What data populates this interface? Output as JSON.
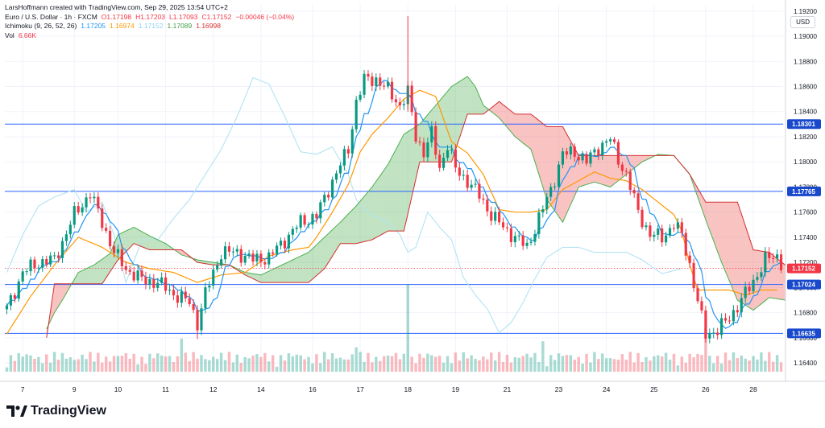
{
  "header": {
    "attribution": "LarsHoffmann created with TradingView.com, Sep 29, 2025 13:54 UTC+2",
    "symbol": "Euro / U.S. Dollar · 1h · FXCM",
    "ohlc": {
      "O": "1.17198",
      "H": "1.17203",
      "L": "1.17093",
      "C": "1.17152",
      "change": "−0.00046 (−0.04%)"
    },
    "ichimoku": {
      "label": "Ichimoku (9, 26, 52, 26)",
      "values": [
        "1.17205",
        "1.16974",
        "1.17152",
        "1.17089",
        "1.16998"
      ]
    },
    "vol": {
      "label": "Vol",
      "value": "6.66K"
    }
  },
  "colors": {
    "up": "#089981",
    "down": "#f23645",
    "tenkan": "#2196f3",
    "kijun": "#ff9800",
    "chikou": "#b2e3f4",
    "spanA": "#4caf50",
    "spanB": "#d32f2f",
    "cloudBull": "rgba(76,175,80,0.35)",
    "cloudBear": "rgba(239,83,80,0.35)",
    "hline": "#2962ff",
    "axisBadge": "#1848cc",
    "lastPrice": "#f23645"
  },
  "currency_label": "USD",
  "brand": {
    "name": "TradingView",
    "icon": "tradingview-logo-icon"
  },
  "chart_data": {
    "type": "candlestick",
    "title": "Euro / U.S. Dollar · 1h · FXCM",
    "y_ticks": [
      "1.16400",
      "1.16600",
      "1.16800",
      "1.17000",
      "1.17200",
      "1.17400",
      "1.17600",
      "1.17800",
      "1.18000",
      "1.18200",
      "1.18400",
      "1.18600",
      "1.18800",
      "1.19000",
      "1.19200"
    ],
    "ylim": [
      1.1633,
      1.1925
    ],
    "x_ticks": [
      "7",
      "9",
      "10",
      "11",
      "12",
      "14",
      "16",
      "17",
      "18",
      "19",
      "21",
      "23",
      "24",
      "25",
      "26",
      "28"
    ],
    "x_tick_index": [
      4,
      17,
      28,
      40,
      52,
      64,
      77,
      89,
      101,
      113,
      126,
      139,
      151,
      163,
      176,
      188
    ],
    "n_bars": 196,
    "horizontal_levels": [
      {
        "value": 1.18301,
        "label": "1.18301"
      },
      {
        "value": 1.17765,
        "label": "1.17765"
      },
      {
        "value": 1.17024,
        "label": "1.17024"
      },
      {
        "value": 1.16635,
        "label": "1.16635"
      }
    ],
    "last_price": {
      "value": 1.17152,
      "label": "1.17152"
    },
    "close_anchors": [
      [
        0,
        1.1683
      ],
      [
        4,
        1.1712
      ],
      [
        8,
        1.172
      ],
      [
        12,
        1.1722
      ],
      [
        17,
        1.1758
      ],
      [
        21,
        1.1775
      ],
      [
        24,
        1.1752
      ],
      [
        27,
        1.1728
      ],
      [
        30,
        1.1715
      ],
      [
        34,
        1.1706
      ],
      [
        38,
        1.1704
      ],
      [
        42,
        1.1695
      ],
      [
        46,
        1.1688
      ],
      [
        48,
        1.1672
      ],
      [
        50,
        1.1695
      ],
      [
        54,
        1.1728
      ],
      [
        58,
        1.1728
      ],
      [
        62,
        1.1722
      ],
      [
        66,
        1.1724
      ],
      [
        70,
        1.1738
      ],
      [
        74,
        1.1752
      ],
      [
        78,
        1.1757
      ],
      [
        82,
        1.1785
      ],
      [
        86,
        1.181
      ],
      [
        88,
        1.1848
      ],
      [
        90,
        1.1865
      ],
      [
        93,
        1.1866
      ],
      [
        96,
        1.1857
      ],
      [
        99,
        1.1845
      ],
      [
        101,
        1.1855
      ],
      [
        103,
        1.182
      ],
      [
        105,
        1.1808
      ],
      [
        107,
        1.1822
      ],
      [
        109,
        1.1795
      ],
      [
        111,
        1.1814
      ],
      [
        113,
        1.1794
      ],
      [
        116,
        1.1785
      ],
      [
        119,
        1.1773
      ],
      [
        122,
        1.1758
      ],
      [
        125,
        1.1748
      ],
      [
        128,
        1.174
      ],
      [
        131,
        1.1732
      ],
      [
        134,
        1.1755
      ],
      [
        137,
        1.1778
      ],
      [
        140,
        1.1806
      ],
      [
        143,
        1.1808
      ],
      [
        146,
        1.18
      ],
      [
        149,
        1.1812
      ],
      [
        152,
        1.1818
      ],
      [
        154,
        1.1802
      ],
      [
        156,
        1.179
      ],
      [
        159,
        1.176
      ],
      [
        162,
        1.1742
      ],
      [
        165,
        1.174
      ],
      [
        168,
        1.175
      ],
      [
        170,
        1.1742
      ],
      [
        172,
        1.1718
      ],
      [
        174,
        1.1688
      ],
      [
        176,
        1.1663
      ],
      [
        179,
        1.1666
      ],
      [
        182,
        1.1676
      ],
      [
        185,
        1.169
      ],
      [
        188,
        1.1705
      ],
      [
        191,
        1.1722
      ],
      [
        194,
        1.1725
      ],
      [
        196,
        1.1715
      ]
    ],
    "chikou_anchors": [
      [
        0,
        1.1712
      ],
      [
        4,
        1.1742
      ],
      [
        8,
        1.1765
      ],
      [
        12,
        1.1772
      ],
      [
        17,
        1.1778
      ],
      [
        20,
        1.176
      ],
      [
        24,
        1.1768
      ],
      [
        27,
        1.1742
      ],
      [
        30,
        1.1704
      ],
      [
        34,
        1.1738
      ],
      [
        38,
        1.1738
      ],
      [
        42,
        1.1755
      ],
      [
        46,
        1.177
      ],
      [
        50,
        1.179
      ],
      [
        54,
        1.181
      ],
      [
        58,
        1.1836
      ],
      [
        62,
        1.1867
      ],
      [
        66,
        1.1862
      ],
      [
        70,
        1.1836
      ],
      [
        74,
        1.1808
      ],
      [
        78,
        1.1806
      ],
      [
        82,
        1.1812
      ],
      [
        86,
        1.179
      ],
      [
        88,
        1.177
      ],
      [
        90,
        1.1762
      ],
      [
        93,
        1.1756
      ],
      [
        96,
        1.1752
      ],
      [
        99,
        1.1742
      ],
      [
        101,
        1.1728
      ],
      [
        103,
        1.1732
      ],
      [
        106,
        1.176
      ],
      [
        109,
        1.1748
      ],
      [
        112,
        1.1738
      ],
      [
        115,
        1.1708
      ],
      [
        118,
        1.1694
      ],
      [
        121,
        1.1683
      ],
      [
        124,
        1.1664
      ],
      [
        127,
        1.1672
      ],
      [
        130,
        1.1688
      ],
      [
        133,
        1.1707
      ],
      [
        136,
        1.1724
      ],
      [
        140,
        1.1732
      ],
      [
        144,
        1.1732
      ],
      [
        148,
        1.1728
      ],
      [
        152,
        1.1728
      ],
      [
        156,
        1.1728
      ],
      [
        160,
        1.1722
      ],
      [
        165,
        1.1711
      ],
      [
        170,
        1.1715
      ]
    ],
    "kijun_anchors": [
      [
        0,
        1.1663
      ],
      [
        6,
        1.1693
      ],
      [
        12,
        1.1718
      ],
      [
        18,
        1.174
      ],
      [
        24,
        1.1732
      ],
      [
        30,
        1.172
      ],
      [
        36,
        1.1715
      ],
      [
        42,
        1.1712
      ],
      [
        48,
        1.1704
      ],
      [
        54,
        1.171
      ],
      [
        60,
        1.1712
      ],
      [
        66,
        1.1725
      ],
      [
        72,
        1.173
      ],
      [
        76,
        1.1732
      ],
      [
        78,
        1.174
      ],
      [
        82,
        1.176
      ],
      [
        86,
        1.1782
      ],
      [
        89,
        1.1808
      ],
      [
        92,
        1.1822
      ],
      [
        96,
        1.1835
      ],
      [
        100,
        1.185
      ],
      [
        104,
        1.1857
      ],
      [
        108,
        1.1852
      ],
      [
        112,
        1.1816
      ],
      [
        116,
        1.1807
      ],
      [
        120,
        1.179
      ],
      [
        124,
        1.1762
      ],
      [
        128,
        1.176
      ],
      [
        132,
        1.176
      ],
      [
        136,
        1.1762
      ],
      [
        140,
        1.1778
      ],
      [
        144,
        1.1785
      ],
      [
        148,
        1.1792
      ],
      [
        152,
        1.1787
      ],
      [
        156,
        1.1785
      ],
      [
        160,
        1.1778
      ],
      [
        164,
        1.1768
      ],
      [
        168,
        1.1758
      ],
      [
        170,
        1.1745
      ],
      [
        172,
        1.1718
      ],
      [
        174,
        1.1698
      ],
      [
        178,
        1.1698
      ],
      [
        182,
        1.1698
      ],
      [
        186,
        1.1694
      ],
      [
        190,
        1.1698
      ],
      [
        194,
        1.1698
      ]
    ],
    "spanA_anchors": [
      [
        10,
        1.1667
      ],
      [
        12,
        1.168
      ],
      [
        14,
        1.169
      ],
      [
        18,
        1.1712
      ],
      [
        22,
        1.1718
      ],
      [
        26,
        1.1727
      ],
      [
        28,
        1.1742
      ],
      [
        32,
        1.1748
      ],
      [
        36,
        1.1741
      ],
      [
        40,
        1.1735
      ],
      [
        44,
        1.1726
      ],
      [
        48,
        1.1722
      ],
      [
        52,
        1.172
      ],
      [
        56,
        1.1718
      ],
      [
        60,
        1.1712
      ],
      [
        64,
        1.171
      ],
      [
        68,
        1.1716
      ],
      [
        72,
        1.1722
      ],
      [
        76,
        1.1728
      ],
      [
        80,
        1.174
      ],
      [
        84,
        1.1752
      ],
      [
        88,
        1.1765
      ],
      [
        92,
        1.178
      ],
      [
        96,
        1.1798
      ],
      [
        100,
        1.1822
      ],
      [
        104,
        1.183
      ],
      [
        108,
        1.1845
      ],
      [
        112,
        1.186
      ],
      [
        116,
        1.1868
      ],
      [
        118,
        1.186
      ],
      [
        120,
        1.1845
      ],
      [
        124,
        1.1835
      ],
      [
        128,
        1.182
      ],
      [
        132,
        1.181
      ],
      [
        136,
        1.177
      ],
      [
        140,
        1.1752
      ],
      [
        144,
        1.178
      ],
      [
        148,
        1.1784
      ],
      [
        152,
        1.178
      ],
      [
        156,
        1.179
      ],
      [
        160,
        1.18
      ],
      [
        164,
        1.1806
      ],
      [
        168,
        1.1805
      ],
      [
        172,
        1.179
      ],
      [
        176,
        1.1754
      ],
      [
        180,
        1.172
      ],
      [
        184,
        1.169
      ],
      [
        188,
        1.1682
      ],
      [
        192,
        1.1692
      ],
      [
        196,
        1.169
      ]
    ],
    "spanB_anchors": [
      [
        10,
        1.166
      ],
      [
        12,
        1.1703
      ],
      [
        16,
        1.1703
      ],
      [
        20,
        1.1703
      ],
      [
        24,
        1.1703
      ],
      [
        28,
        1.1722
      ],
      [
        32,
        1.1735
      ],
      [
        36,
        1.173
      ],
      [
        40,
        1.173
      ],
      [
        44,
        1.173
      ],
      [
        48,
        1.172
      ],
      [
        52,
        1.1718
      ],
      [
        56,
        1.1718
      ],
      [
        60,
        1.171
      ],
      [
        64,
        1.1704
      ],
      [
        68,
        1.1704
      ],
      [
        72,
        1.1704
      ],
      [
        76,
        1.1704
      ],
      [
        80,
        1.1715
      ],
      [
        84,
        1.1735
      ],
      [
        88,
        1.1735
      ],
      [
        92,
        1.1738
      ],
      [
        96,
        1.1745
      ],
      [
        100,
        1.1745
      ],
      [
        104,
        1.18
      ],
      [
        108,
        1.18
      ],
      [
        112,
        1.18
      ],
      [
        116,
        1.1838
      ],
      [
        120,
        1.1838
      ],
      [
        124,
        1.1848
      ],
      [
        128,
        1.1838
      ],
      [
        132,
        1.1838
      ],
      [
        136,
        1.1828
      ],
      [
        140,
        1.1828
      ],
      [
        144,
        1.1805
      ],
      [
        148,
        1.1805
      ],
      [
        152,
        1.1805
      ],
      [
        156,
        1.1805
      ],
      [
        160,
        1.1805
      ],
      [
        164,
        1.1805
      ],
      [
        168,
        1.1805
      ],
      [
        172,
        1.179
      ],
      [
        176,
        1.1768
      ],
      [
        180,
        1.1768
      ],
      [
        184,
        1.1768
      ],
      [
        188,
        1.173
      ],
      [
        192,
        1.1728
      ],
      [
        196,
        1.1718
      ]
    ],
    "volume_spikes": [
      [
        101,
        1.0
      ],
      [
        176,
        0.5
      ],
      [
        135,
        0.35
      ],
      [
        44,
        0.38
      ],
      [
        88,
        0.28
      ]
    ]
  }
}
